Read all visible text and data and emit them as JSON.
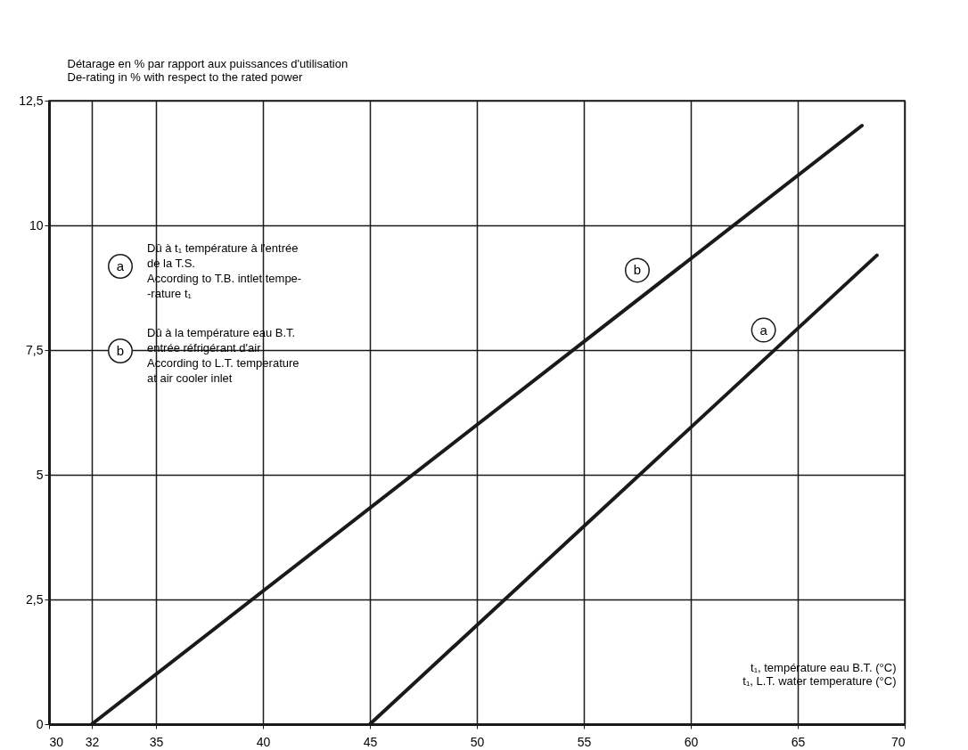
{
  "chart_data": {
    "type": "line",
    "ylabel": "Détarage en % par rapport aux puissances d'utilisation\nDe-rating in % with respect to the rated power",
    "xlabel": "t₁, température eau B.T. (°C)\nt₁, L.T. water temperature (°C)",
    "series": [
      {
        "name": "a",
        "color": "#1a1a1a",
        "x": [
          45,
          68.7
        ],
        "values": [
          0,
          9.4
        ]
      },
      {
        "name": "b",
        "color": "#1a1a1a",
        "x": [
          32,
          68
        ],
        "values": [
          0,
          12
        ]
      }
    ],
    "annotations": [
      "Dû à t₁ température à l'entrée\nde la T.S.\nAccording to T.B. intlet tempe-\n-rature t₁",
      "Dû à la température eau B.T.\nentrée réfrigérant d'air\nAccording to L.T. temperature\nat air cooler inlet",
      {
        "text": "a",
        "x": 63.4,
        "y": 7.9
      },
      {
        "text": "b",
        "x": 57.5,
        "y": 9.1
      }
    ],
    "xlim": [
      30,
      70
    ],
    "ylim": [
      0,
      12.5
    ],
    "xticks": [
      30,
      32,
      35,
      40,
      45,
      50,
      55,
      60,
      65,
      70
    ],
    "yticks": [
      0,
      {
        "value": 2.5,
        "label": "2,5"
      },
      5,
      {
        "value": 7.5,
        "label": "7,5"
      },
      10,
      {
        "value": 12.5,
        "label": "12,5"
      }
    ],
    "grid": true,
    "legend": false,
    "marker": "none",
    "line_style": "solid"
  }
}
